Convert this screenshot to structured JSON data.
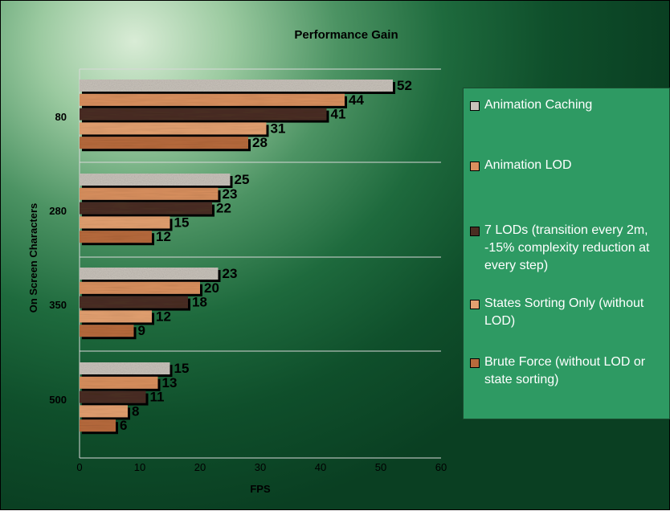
{
  "chart_data": {
    "type": "bar",
    "orientation": "horizontal",
    "title": "Performance Gain",
    "xlabel": "FPS",
    "ylabel": "On Screen Characters",
    "xlim": [
      0,
      60
    ],
    "xticks": [
      "0",
      "10",
      "20",
      "30",
      "40",
      "50",
      "60"
    ],
    "categories": [
      "80",
      "280",
      "350",
      "500"
    ],
    "grid": "horizontal separators between categories",
    "legend_position": "right",
    "series": [
      {
        "name": "Animation Caching",
        "values": [
          52,
          25,
          23,
          15
        ],
        "color": "#c9c3bb",
        "pattern": "granite"
      },
      {
        "name": "Animation LOD",
        "values": [
          44,
          23,
          20,
          13
        ],
        "color": "#d9905e",
        "pattern": "wood-light"
      },
      {
        "name": "7 LODs (transition every 2m, -15% complexity reduction at every step)",
        "values": [
          41,
          22,
          18,
          11
        ],
        "color": "#4a2e22",
        "pattern": "wood-dark"
      },
      {
        "name": "States Sorting Only (without LOD)",
        "values": [
          31,
          15,
          12,
          8
        ],
        "color": "#e3a070",
        "pattern": "wood-pale"
      },
      {
        "name": "Brute Force (without LOD or state sorting)",
        "values": [
          28,
          12,
          9,
          6
        ],
        "color": "#b76a3c",
        "pattern": "wood-medium"
      }
    ]
  }
}
